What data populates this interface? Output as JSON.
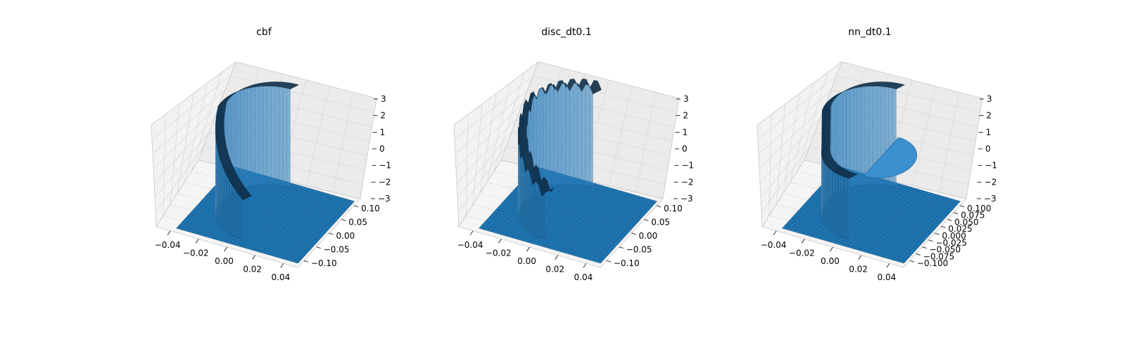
{
  "chart_data": [
    {
      "type": "surface3d",
      "title": "cbf",
      "xlabel": "",
      "ylabel": "",
      "zlabel": "",
      "xlim": [
        -0.05,
        0.05
      ],
      "ylim": [
        -0.1,
        0.1
      ],
      "zlim": [
        -3,
        3
      ],
      "x_ticks": [
        "−0.04",
        "−0.02",
        "0.00",
        "0.02",
        "0.04"
      ],
      "y_ticks": [
        "−0.10",
        "−0.05",
        "0.00",
        "0.05",
        "0.10"
      ],
      "z_ticks": [
        "−3",
        "−2",
        "−1",
        "0",
        "1",
        "2",
        "3"
      ],
      "surface_color": "#1f77b4",
      "variant": "smooth",
      "plateau_value": 3,
      "floor_value": -3
    },
    {
      "type": "surface3d",
      "title": "disc_dt0.1",
      "xlabel": "",
      "ylabel": "",
      "zlabel": "",
      "xlim": [
        -0.05,
        0.05
      ],
      "ylim": [
        -0.1,
        0.1
      ],
      "zlim": [
        -3,
        3
      ],
      "x_ticks": [
        "−0.04",
        "−0.02",
        "0.00",
        "0.02",
        "0.04"
      ],
      "y_ticks": [
        "−0.10",
        "−0.05",
        "0.00",
        "0.05",
        "0.10"
      ],
      "z_ticks": [
        "−3",
        "−2",
        "−1",
        "0",
        "1",
        "2",
        "3"
      ],
      "surface_color": "#1f77b4",
      "variant": "jagged",
      "plateau_value": 3,
      "floor_value": -3
    },
    {
      "type": "surface3d",
      "title": "nn_dt0.1",
      "xlabel": "",
      "ylabel": "",
      "zlabel": "",
      "xlim": [
        -0.05,
        0.05
      ],
      "ylim": [
        -0.1,
        0.1
      ],
      "zlim": [
        -3,
        3
      ],
      "x_ticks": [
        "−0.04",
        "−0.02",
        "0.00",
        "0.02",
        "0.04"
      ],
      "y_ticks": [
        "−0.100",
        "−0.075",
        "−0.050",
        "−0.025",
        "0.000",
        "0.025",
        "0.050",
        "0.075",
        "0.100"
      ],
      "z_ticks": [
        "−3",
        "−2",
        "−1",
        "0",
        "1",
        "2",
        "3"
      ],
      "surface_color": "#1f77b4",
      "variant": "step",
      "plateau_value": 3,
      "floor_value": -3
    }
  ]
}
